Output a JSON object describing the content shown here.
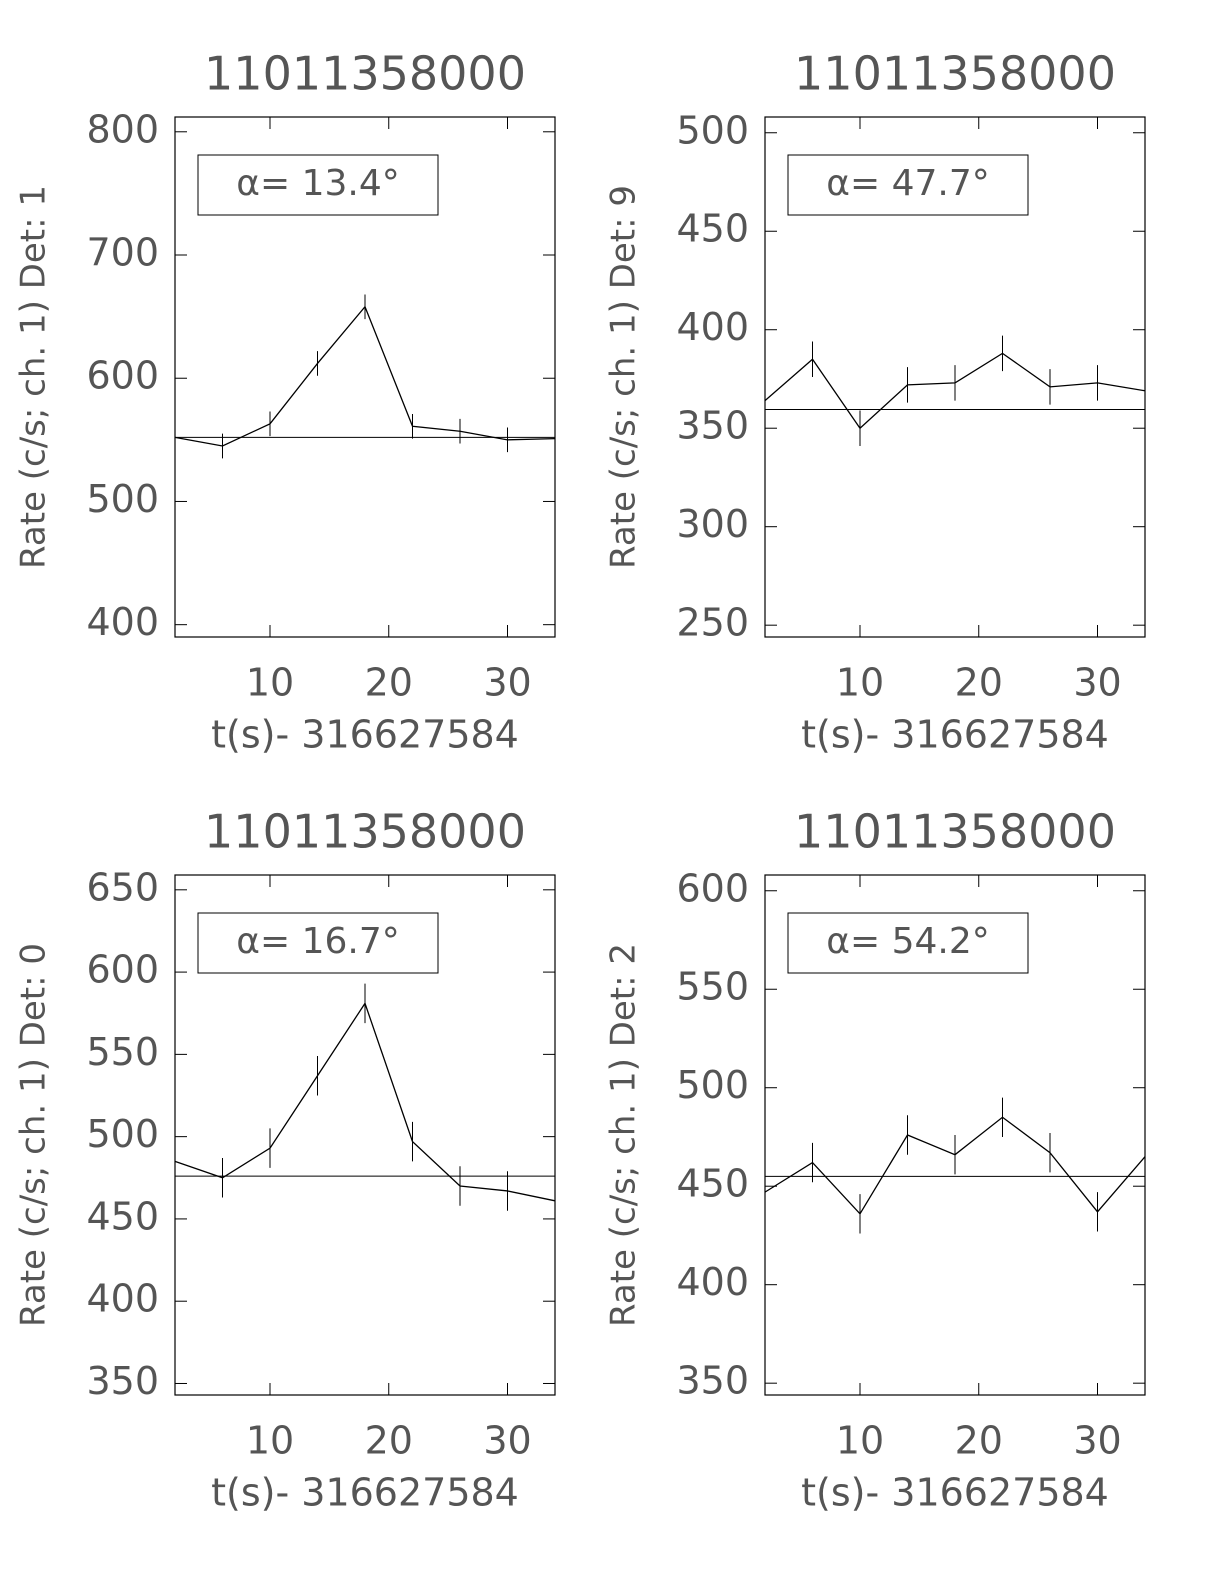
{
  "chart_data": [
    {
      "type": "line",
      "title": "11011358000",
      "y_label": "Rate (c/s; ch. 1) Det: 1",
      "x_label": "t(s)- 316627584",
      "annotation": "α= 13.4°",
      "x": [
        2,
        6,
        10,
        14,
        18,
        22,
        26,
        30,
        34
      ],
      "values": [
        552,
        545,
        563,
        612,
        658,
        561,
        557,
        550,
        551
      ],
      "errors": [
        10,
        10,
        10,
        10,
        10,
        10,
        10,
        10,
        10
      ],
      "baseline": 552,
      "color": "#000000",
      "xlim": [
        2,
        34
      ],
      "ylim": [
        390,
        812
      ],
      "xticks": [
        10,
        20,
        30
      ],
      "yticks": [
        400,
        500,
        600,
        700,
        800
      ]
    },
    {
      "type": "line",
      "title": "11011358000",
      "y_label": "Rate (c/s; ch. 1) Det: 9",
      "x_label": "t(s)- 316627584",
      "annotation": "α= 47.7°",
      "x": [
        2,
        6,
        10,
        14,
        18,
        22,
        26,
        30,
        34
      ],
      "values": [
        364,
        385,
        350,
        372,
        373,
        388,
        371,
        373,
        369
      ],
      "errors": [
        9,
        9,
        9,
        9,
        9,
        9,
        9,
        9,
        9
      ],
      "baseline": 359.5,
      "color": "#000000",
      "xlim": [
        2,
        34
      ],
      "ylim": [
        244,
        508
      ],
      "xticks": [
        10,
        20,
        30
      ],
      "yticks": [
        250,
        300,
        350,
        400,
        450,
        500
      ]
    },
    {
      "type": "line",
      "title": "11011358000",
      "y_label": "Rate (c/s; ch. 1) Det: 0",
      "x_label": "t(s)- 316627584",
      "annotation": "α= 16.7°",
      "x": [
        2,
        6,
        10,
        14,
        18,
        22,
        26,
        30,
        34
      ],
      "values": [
        485,
        475,
        493,
        537,
        581,
        497,
        470,
        467,
        461
      ],
      "errors": [
        12,
        12,
        12,
        12,
        12,
        12,
        12,
        12,
        12
      ],
      "baseline": 476,
      "color": "#000000",
      "xlim": [
        2,
        34
      ],
      "ylim": [
        343,
        659
      ],
      "xticks": [
        10,
        20,
        30
      ],
      "yticks": [
        350,
        400,
        450,
        500,
        550,
        600,
        650
      ]
    },
    {
      "type": "line",
      "title": "11011358000",
      "y_label": "Rate (c/s; ch. 1) Det: 2",
      "x_label": "t(s)- 316627584",
      "annotation": "α= 54.2°",
      "x": [
        2,
        6,
        10,
        14,
        18,
        22,
        26,
        30,
        34
      ],
      "values": [
        447,
        462,
        436,
        476,
        466,
        485,
        467,
        437,
        465
      ],
      "errors": [
        10,
        10,
        10,
        10,
        10,
        10,
        10,
        10,
        10
      ],
      "baseline": 455,
      "color": "#000000",
      "xlim": [
        2,
        34
      ],
      "ylim": [
        344,
        608
      ],
      "xticks": [
        10,
        20,
        30
      ],
      "yticks": [
        350,
        400,
        450,
        500,
        550,
        600
      ]
    }
  ]
}
